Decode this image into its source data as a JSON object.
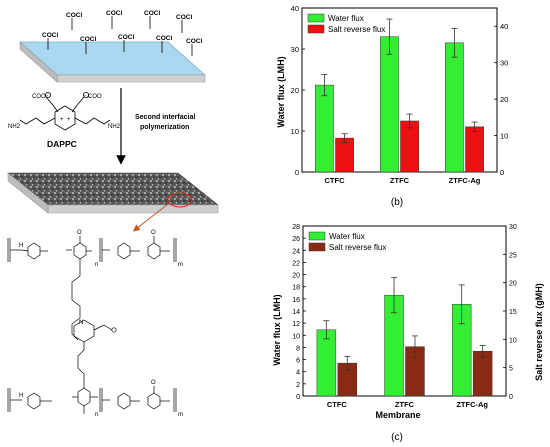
{
  "scheme": {
    "cocl_labels": [
      "COCl",
      "COCl",
      "COCl",
      "COCl",
      "COCl",
      "COCl",
      "COCl",
      "COCl",
      "COCl"
    ],
    "molecule_label": "DAPPC",
    "nh2_left": "NH2",
    "nh2_right": "NH2",
    "coo_left": "COO",
    "coo_right": "COO",
    "step_label_line1": "Second interfacial",
    "step_label_line2": "polymerization",
    "charge_minus": "−",
    "charge_plus": "+",
    "structure_subscript_n": "n",
    "structure_subscript_m": "m",
    "structure_labels": {
      "H": "H",
      "O": "O",
      "N": "N"
    }
  },
  "colors": {
    "water": "#33ee33",
    "salt_b": "#ee1111",
    "salt_c": "#8b2a12",
    "membrane_top": "#a9d7ef",
    "membrane_side": "#cfcfcf"
  },
  "chart_data": [
    {
      "panel": "(b)",
      "type": "bar",
      "categories": [
        "CTFC",
        "ZTFC",
        "ZTFC-Ag"
      ],
      "series": [
        {
          "name": "Water flux",
          "axis": "left",
          "values": [
            21.2,
            33.0,
            31.5
          ],
          "errors": [
            2.6,
            4.3,
            3.5
          ]
        },
        {
          "name": "Salt reverse flux",
          "axis": "right",
          "values": [
            9.3,
            14.0,
            12.4
          ],
          "errors": [
            1.2,
            1.9,
            1.3
          ]
        }
      ],
      "ylabel": "Water flux (LMH)",
      "y2label": "",
      "xlabel": "",
      "ylim": [
        0,
        40
      ],
      "y2lim": [
        0,
        45
      ],
      "yticks": [
        "0",
        "10",
        "20",
        "30",
        "40"
      ],
      "y2ticks": [
        "0",
        "10",
        "20",
        "30",
        "40"
      ],
      "legend": "top-left",
      "panel_label": "(b)"
    },
    {
      "panel": "(c)",
      "type": "bar",
      "categories": [
        "CTFC",
        "ZTFC",
        "ZTFC-Ag"
      ],
      "series": [
        {
          "name": "Water flux",
          "axis": "left",
          "values": [
            10.9,
            16.6,
            15.1
          ],
          "errors": [
            1.5,
            2.9,
            3.2
          ]
        },
        {
          "name": "Salt reverse flux",
          "axis": "right",
          "values": [
            5.8,
            8.7,
            7.9
          ],
          "errors": [
            1.2,
            1.9,
            1.0
          ]
        }
      ],
      "ylabel": "Water flux (LMH)",
      "y2label": "Salt reverse flux (gMH)",
      "xlabel": "Membrane",
      "ylim": [
        0,
        28
      ],
      "y2lim": [
        0,
        30
      ],
      "yticks": [
        "0",
        "2",
        "4",
        "6",
        "8",
        "10",
        "12",
        "14",
        "16",
        "18",
        "20",
        "22",
        "24",
        "26",
        "28"
      ],
      "y2ticks": [
        "0",
        "5",
        "10",
        "15",
        "20",
        "25",
        "30"
      ],
      "legend": "top-left",
      "panel_label": "(c)"
    }
  ]
}
